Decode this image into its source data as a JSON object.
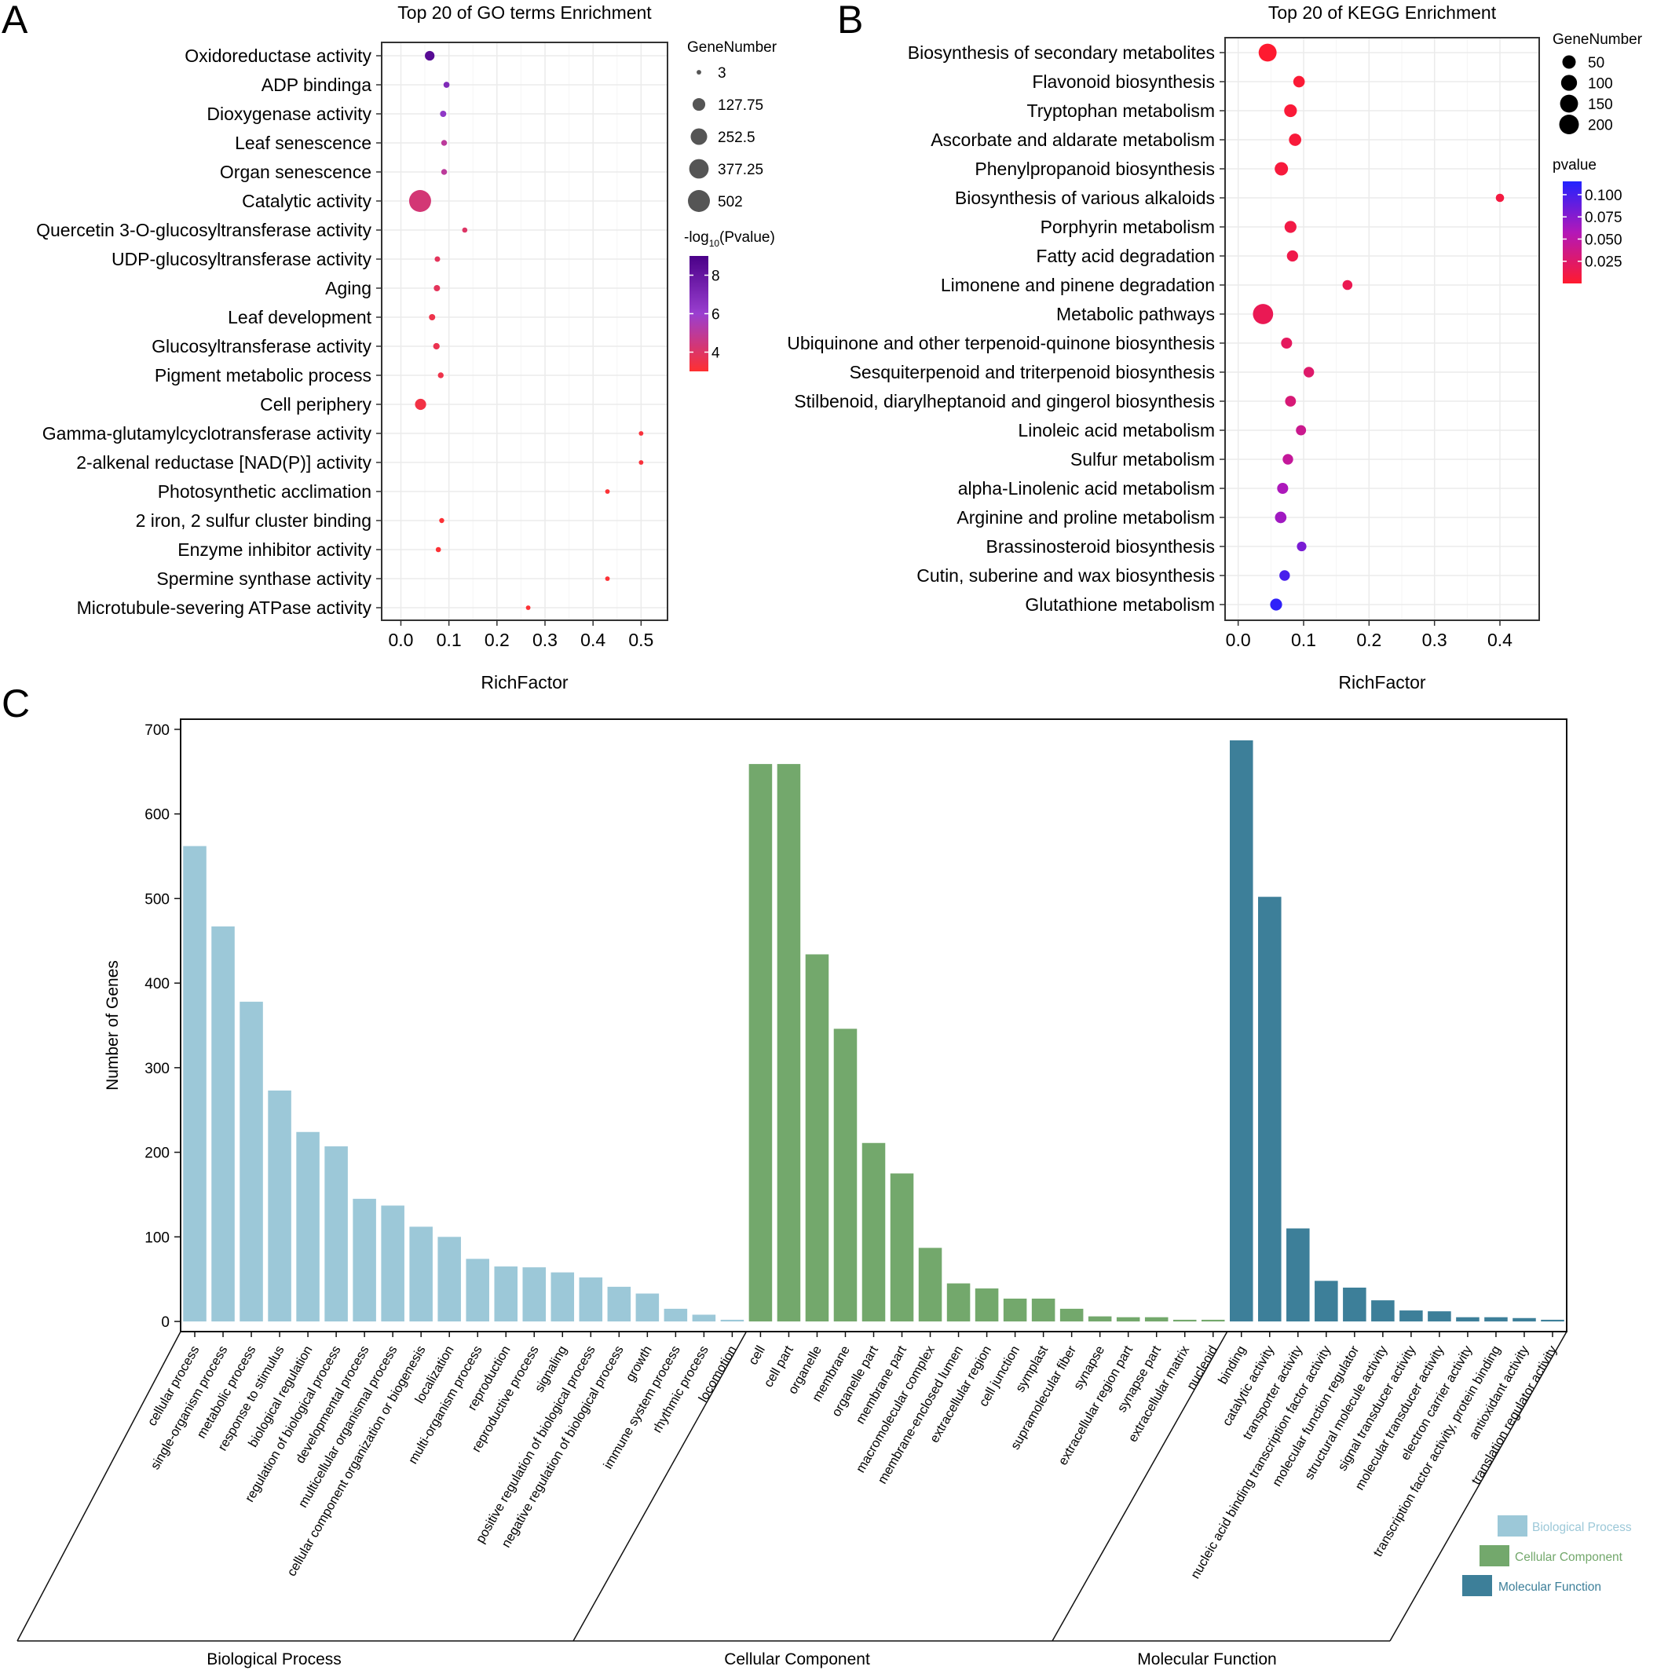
{
  "figure": {
    "panels": [
      "A",
      "B",
      "C"
    ]
  },
  "chart_data": [
    {
      "id": "A",
      "type": "scatter",
      "title": "Top 20 of GO terms Enrichment",
      "xlabel": "RichFactor",
      "ylabel": "",
      "xlim": [
        -0.04,
        0.555
      ],
      "xticks": [
        0.0,
        0.1,
        0.2,
        0.3,
        0.4,
        0.5
      ],
      "xtick_labels": [
        "0.0",
        "0.1",
        "0.2",
        "0.3",
        "0.4",
        "0.5"
      ],
      "grid": true,
      "categories": [
        "Oxidoreductase activity",
        "ADP bindinga",
        "Dioxygenase activity",
        "Leaf senescence",
        "Organ senescence",
        "Catalytic activity",
        "Quercetin 3-O-glucosyltransferase activity",
        "UDP-glucosyltransferase activity",
        "Aging",
        "Leaf development",
        "Glucosyltransferase activity",
        "Pigment metabolic process",
        "Cell periphery",
        "Gamma-glutamylcyclotransferase activity",
        "2-alkenal reductase [NAD(P)] activity",
        "Photosynthetic acclimation",
        "2 iron, 2 sulfur cluster binding",
        "Enzyme inhibitor activity",
        "Spermine synthase activity",
        "Microtubule-severing ATPase activity"
      ],
      "x": [
        0.06,
        0.095,
        0.088,
        0.09,
        0.09,
        0.04,
        0.133,
        0.076,
        0.075,
        0.065,
        0.074,
        0.083,
        0.041,
        0.5,
        0.5,
        0.43,
        0.085,
        0.078,
        0.43,
        0.265
      ],
      "gene_number": [
        60,
        12,
        14,
        10,
        10,
        502,
        6,
        8,
        14,
        14,
        16,
        10,
        90,
        3,
        3,
        3,
        5,
        6,
        3,
        3
      ],
      "neg_log10_pvalue": [
        8.5,
        7.0,
        6.4,
        5.0,
        5.0,
        4.3,
        4.0,
        3.8,
        3.8,
        3.5,
        3.6,
        3.5,
        3.4,
        3.2,
        3.2,
        3.1,
        3.1,
        3.1,
        3.1,
        3.1
      ],
      "size_legend": {
        "title": "GeneNumber",
        "values": [
          3,
          127.75,
          252.5,
          377.25,
          502
        ],
        "labels": [
          "3",
          "127.75",
          "252.5",
          "377.25",
          "502"
        ]
      },
      "color_legend": {
        "title": "-log10(Pvalue)",
        "title_prefix": "-log",
        "title_sub": "10",
        "title_suffix": "(Pvalue)",
        "range": [
          3.0,
          9.0
        ],
        "ticks": [
          8,
          6,
          4
        ],
        "tick_labels": [
          "8",
          "6",
          "4"
        ],
        "colors": [
          "#ff3030",
          "#9a3fd0",
          "#4a0088"
        ]
      }
    },
    {
      "id": "B",
      "type": "scatter",
      "title": "Top 20 of KEGG Enrichment",
      "xlabel": "RichFactor",
      "ylabel": "",
      "xlim": [
        -0.02,
        0.46
      ],
      "xticks": [
        0.0,
        0.1,
        0.2,
        0.3,
        0.4
      ],
      "xtick_labels": [
        "0.0",
        "0.1",
        "0.2",
        "0.3",
        "0.4"
      ],
      "grid": true,
      "categories": [
        "Biosynthesis of secondary metabolites",
        "Flavonoid biosynthesis",
        "Tryptophan metabolism",
        "Ascorbate and aldarate metabolism",
        "Phenylpropanoid biosynthesis",
        "Biosynthesis of various alkaloids",
        "Porphyrin metabolism",
        "Fatty acid degradation",
        "Limonene and pinene degradation",
        "Metabolic pathways",
        "Ubiquinone and other terpenoid-quinone biosynthesis",
        "Sesquiterpenoid and triterpenoid biosynthesis",
        "Stilbenoid, diarylheptanoid and gingerol biosynthesis",
        "Linoleic acid metabolism",
        "Sulfur metabolism",
        "alpha-Linolenic acid metabolism",
        "Arginine and proline metabolism",
        "Brassinosteroid biosynthesis",
        "Cutin, suberine and wax biosynthesis",
        "Glutathione metabolism"
      ],
      "x": [
        0.045,
        0.093,
        0.08,
        0.087,
        0.066,
        0.4,
        0.08,
        0.083,
        0.167,
        0.038,
        0.074,
        0.108,
        0.08,
        0.096,
        0.076,
        0.068,
        0.065,
        0.097,
        0.071,
        0.058
      ],
      "gene_number": [
        150,
        25,
        40,
        35,
        50,
        2,
        30,
        22,
        10,
        220,
        20,
        15,
        18,
        12,
        15,
        20,
        25,
        8,
        15,
        30
      ],
      "pvalue": [
        0.001,
        0.003,
        0.004,
        0.005,
        0.006,
        0.008,
        0.01,
        0.012,
        0.015,
        0.016,
        0.02,
        0.025,
        0.03,
        0.04,
        0.045,
        0.06,
        0.065,
        0.08,
        0.1,
        0.11
      ],
      "size_legend": {
        "title": "GeneNumber",
        "values": [
          50,
          100,
          150,
          200
        ],
        "labels": [
          "50",
          "100",
          "150",
          "200"
        ]
      },
      "color_legend": {
        "title": "pvalue",
        "range": [
          0.0,
          0.115
        ],
        "ticks": [
          0.1,
          0.075,
          0.05,
          0.025
        ],
        "tick_labels": [
          "0.100",
          "0.075",
          "0.050",
          "0.025"
        ],
        "colors": [
          "#ff1a2e",
          "#b318b8",
          "#2222ff"
        ]
      }
    },
    {
      "id": "C",
      "type": "bar",
      "title": "",
      "xlabel": "",
      "ylabel": "Number of Genes",
      "ylim": [
        -12,
        712
      ],
      "yticks": [
        0,
        100,
        200,
        300,
        400,
        500,
        600,
        700
      ],
      "ytick_labels": [
        "0",
        "100",
        "200",
        "300",
        "400",
        "500",
        "600",
        "700"
      ],
      "grid": false,
      "groups": [
        {
          "name": "Biological Process",
          "color": "#9cc8d8",
          "categories": [
            "cellular process",
            "single-organism process",
            "metabolic process",
            "response to stimulus",
            "biological regulation",
            "regulation of biological process",
            "developmental process",
            "multicellular organismal process",
            "cellular component organization or biogenesis",
            "localization",
            "multi-organism process",
            "reproduction",
            "reproductive process",
            "signaling",
            "positive regulation of biological process",
            "negative regulation of biological process",
            "growth",
            "immune system process",
            "rhythmic process",
            "locomotion"
          ],
          "values": [
            562,
            467,
            378,
            273,
            224,
            207,
            145,
            137,
            112,
            100,
            74,
            65,
            64,
            58,
            52,
            41,
            33,
            15,
            8,
            2
          ]
        },
        {
          "name": "Cellular Component",
          "color": "#73a86c",
          "categories": [
            "cell",
            "cell part",
            "organelle",
            "membrane",
            "organelle part",
            "membrane part",
            "macromolecular complex",
            "membrane-enclosed lumen",
            "extracellular region",
            "cell junction",
            "symplast",
            "supramolecular fiber",
            "synapse",
            "extracellular region part",
            "synapse part",
            "extracellular matrix",
            "nucleoid"
          ],
          "values": [
            659,
            659,
            434,
            346,
            211,
            175,
            87,
            45,
            39,
            27,
            27,
            15,
            6,
            5,
            5,
            2,
            2
          ]
        },
        {
          "name": "Molecular Function",
          "color": "#3d7f99",
          "categories": [
            "binding",
            "catalytic activity",
            "transporter activity",
            "nucleic acid binding transcription factor activity",
            "molecular function regulator",
            "structural molecule activity",
            "signal transducer activity",
            "molecular transducer activity",
            "electron carrier activity",
            "transcription factor activity, protein binding",
            "antioxidant activity",
            "translation regulator activity"
          ],
          "values": [
            687,
            502,
            110,
            48,
            40,
            25,
            13,
            12,
            5,
            5,
            4,
            2
          ]
        }
      ]
    }
  ]
}
